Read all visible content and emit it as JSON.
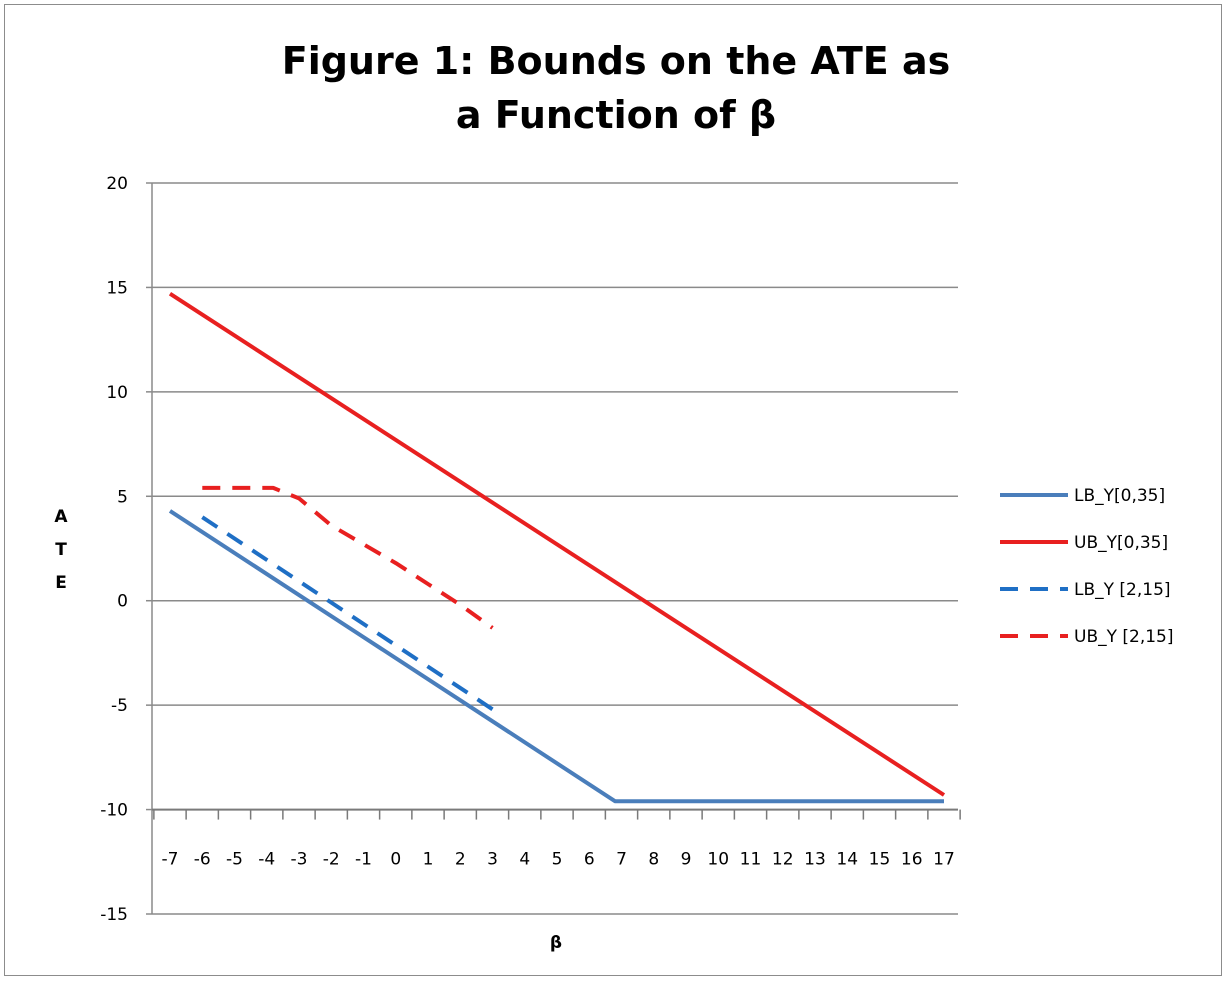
{
  "chart_data": {
    "type": "line",
    "title_lines": [
      "Figure 1:  Bounds on the ATE as",
      "a Function of β"
    ],
    "xlabel": "β",
    "ylabel": "ATE",
    "ylim": [
      -15,
      20
    ],
    "yticks": [
      20,
      15,
      10,
      5,
      0,
      -5,
      -10,
      -15
    ],
    "x_categories": [
      -7,
      -6,
      -5,
      -4,
      -3,
      -2,
      -1,
      0,
      1,
      2,
      3,
      4,
      5,
      6,
      7,
      8,
      9,
      10,
      11,
      12,
      13,
      14,
      15,
      16,
      17
    ],
    "x_axis_crosses_at": -10,
    "grid": "horizontal major",
    "legend_position": "right",
    "series": [
      {
        "name": "LB_Y[0,35]",
        "color": "#4a7ebb",
        "style": "solid",
        "points": [
          [
            -7,
            4.3
          ],
          [
            6.8,
            -9.6
          ],
          [
            17,
            -9.6
          ]
        ]
      },
      {
        "name": "UB_Y[0,35]",
        "color": "#e82020",
        "style": "solid",
        "points": [
          [
            -7,
            14.7
          ],
          [
            17,
            -9.3
          ]
        ]
      },
      {
        "name": "LB_Y [2,15]",
        "color": "#1f6fc5",
        "style": "dashed",
        "points": [
          [
            -6,
            4.0
          ],
          [
            3,
            -5.2
          ]
        ]
      },
      {
        "name": "UB_Y [2,15]",
        "color": "#e82020",
        "style": "dashed",
        "points": [
          [
            -6,
            5.4
          ],
          [
            -3.8,
            5.4
          ],
          [
            -3,
            4.9
          ],
          [
            -2,
            3.6
          ],
          [
            -1,
            2.7
          ],
          [
            0,
            1.8
          ],
          [
            1,
            0.8
          ],
          [
            2,
            -0.2
          ],
          [
            3,
            -1.3
          ]
        ]
      }
    ]
  }
}
